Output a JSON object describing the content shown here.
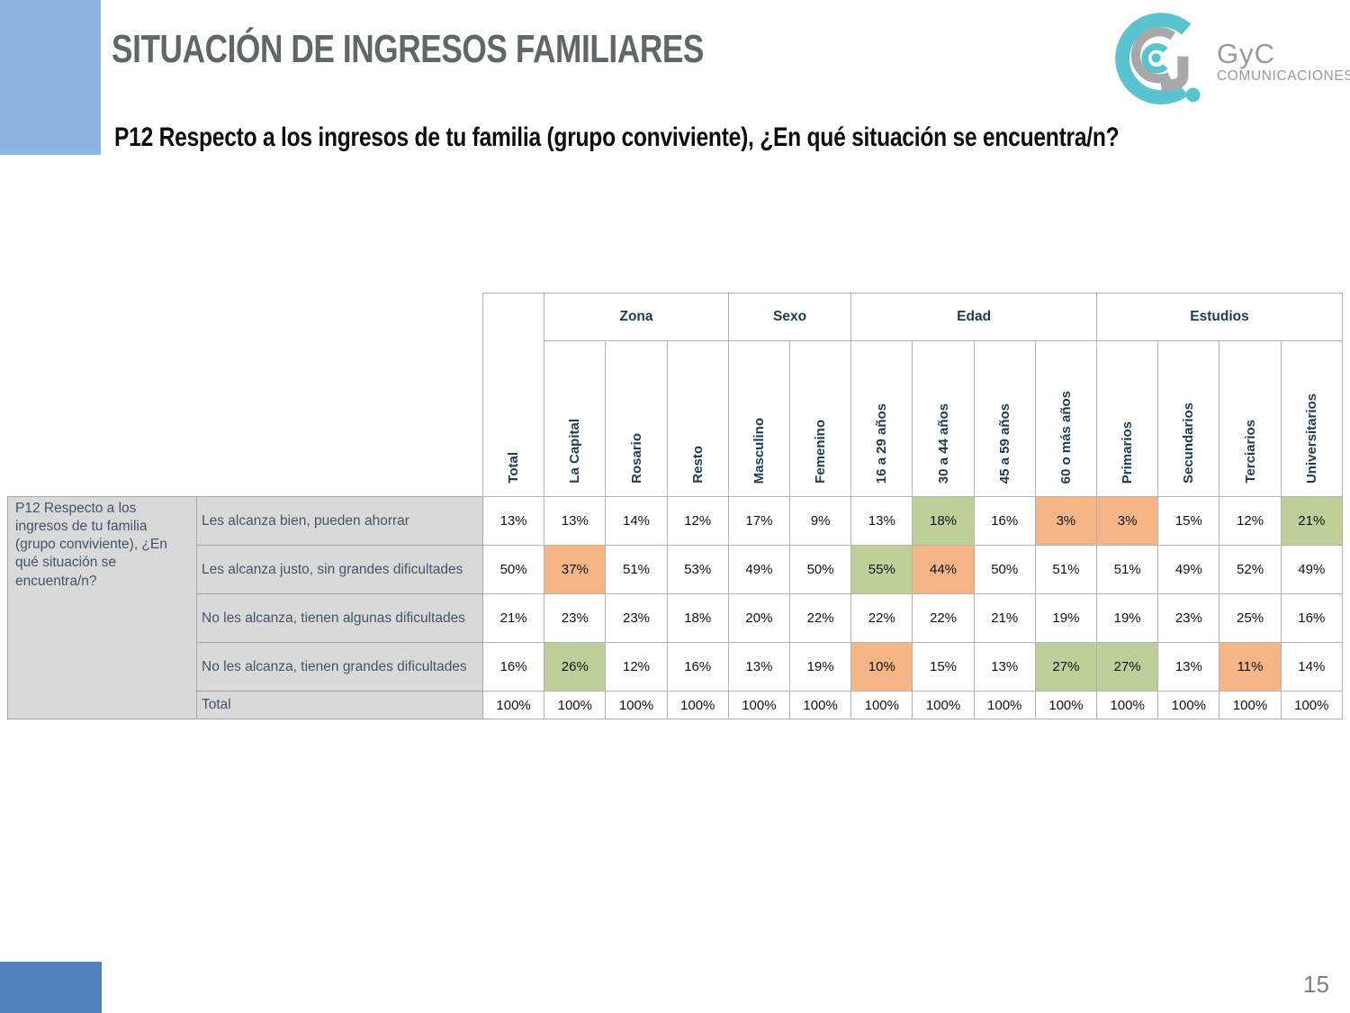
{
  "slide": {
    "title": "SITUACIÓN DE INGRESOS FAMILIARES",
    "question": "P12 Respecto a los ingresos de tu familia (grupo conviviente), ¿En qué situación se encuentra/n?",
    "page_number": "15"
  },
  "logo": {
    "name": "GyC",
    "subname": "COMUNICACIONES",
    "teal": "#5ac3d0",
    "gray": "#a8a8a8"
  },
  "chart_data": {
    "type": "table",
    "stub_question": "P12 Respecto a los ingresos de tu familia (grupo conviviente), ¿En qué situación se encuentra/n?",
    "groups": [
      {
        "label": "Zona",
        "span": 3
      },
      {
        "label": "Sexo",
        "span": 2
      },
      {
        "label": "Edad",
        "span": 4
      },
      {
        "label": "Estudios",
        "span": 4
      }
    ],
    "columns": [
      "Total",
      "La Capital",
      "Rosario",
      "Resto",
      "Masculino",
      "Femenino",
      "16 a 29 años",
      "30 a 44 años",
      "45 a 59 años",
      "60 o más años",
      "Primarios",
      "Secundarios",
      "Terciarios",
      "Universitarios"
    ],
    "rows": [
      {
        "label": "Les alcanza bien, pueden ahorrar",
        "values": [
          "13%",
          "13%",
          "14%",
          "12%",
          "17%",
          "9%",
          "13%",
          "18%",
          "16%",
          "3%",
          "3%",
          "15%",
          "12%",
          "21%"
        ],
        "highlights": {
          "7": "green",
          "9": "orange",
          "10": "orange",
          "13": "green"
        }
      },
      {
        "label": "Les alcanza justo, sin grandes dificultades",
        "values": [
          "50%",
          "37%",
          "51%",
          "53%",
          "49%",
          "50%",
          "55%",
          "44%",
          "50%",
          "51%",
          "51%",
          "49%",
          "52%",
          "49%"
        ],
        "highlights": {
          "1": "orange",
          "6": "green",
          "7": "orange"
        }
      },
      {
        "label": "No les alcanza, tienen algunas dificultades",
        "values": [
          "21%",
          "23%",
          "23%",
          "18%",
          "20%",
          "22%",
          "22%",
          "22%",
          "21%",
          "19%",
          "19%",
          "23%",
          "25%",
          "16%"
        ],
        "highlights": {}
      },
      {
        "label": "No les alcanza, tienen grandes dificultades",
        "values": [
          "16%",
          "26%",
          "12%",
          "16%",
          "13%",
          "19%",
          "10%",
          "15%",
          "13%",
          "27%",
          "27%",
          "13%",
          "11%",
          "14%"
        ],
        "highlights": {
          "1": "green",
          "6": "orange",
          "9": "green",
          "10": "green",
          "12": "orange"
        }
      },
      {
        "label": "Total",
        "values": [
          "100%",
          "100%",
          "100%",
          "100%",
          "100%",
          "100%",
          "100%",
          "100%",
          "100%",
          "100%",
          "100%",
          "100%",
          "100%",
          "100%"
        ],
        "highlights": {},
        "is_total": true
      }
    ],
    "highlight_colors": {
      "green": "#bdd099",
      "orange": "#f6b587"
    }
  }
}
